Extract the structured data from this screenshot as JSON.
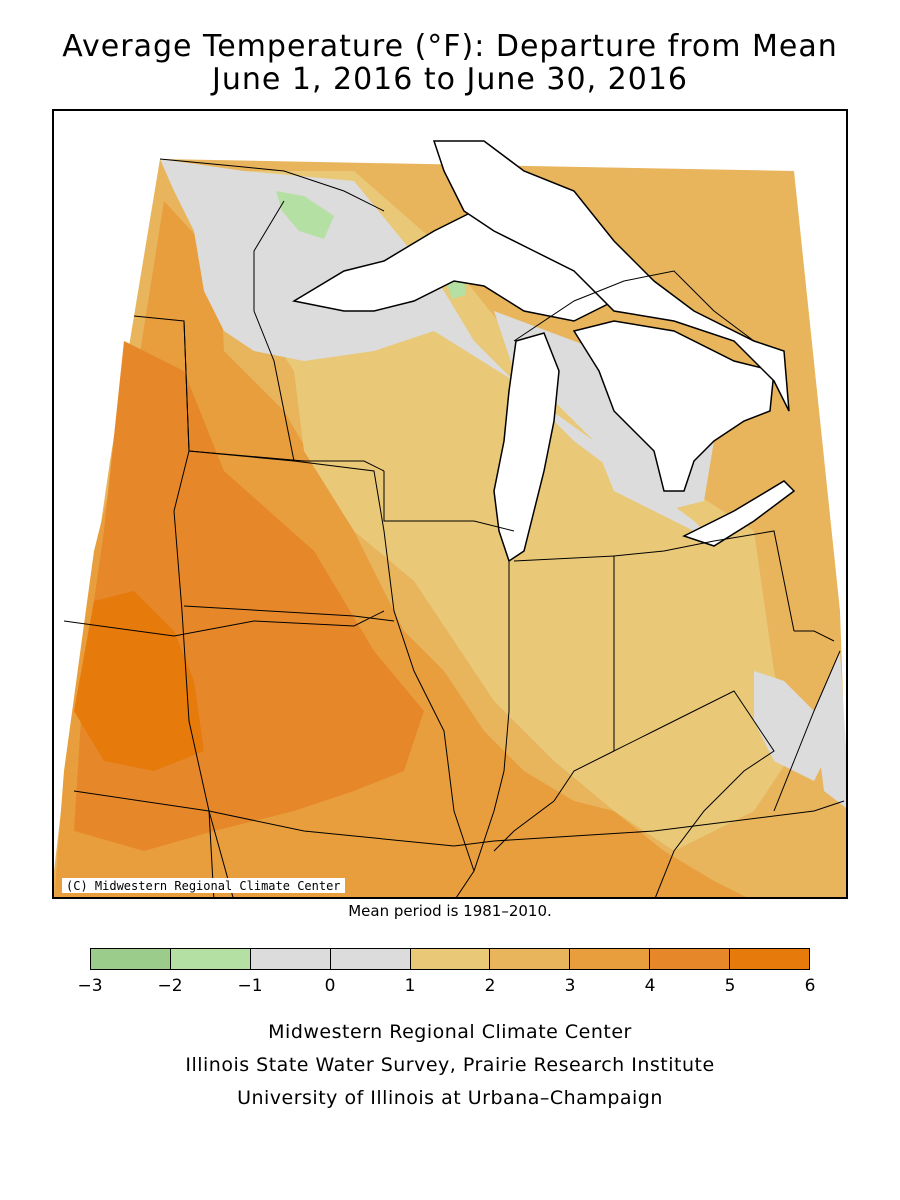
{
  "title_line1": "Average Temperature (°F): Departure from Mean",
  "title_line2": "June 1, 2016 to June 30, 2016",
  "copyright": "(C) Midwestern Regional Climate Center",
  "mean_period": "Mean period is 1981–2010.",
  "legend": {
    "colors": [
      "#9ccc8c",
      "#b4e0a4",
      "#dcdcdc",
      "#dcdcdc",
      "#e9c878",
      "#e8b45c",
      "#e89e3c",
      "#e6882a",
      "#e67a0a"
    ],
    "ticks": [
      "−3",
      "−2",
      "−1",
      "0",
      "1",
      "2",
      "3",
      "4",
      "5",
      "6"
    ]
  },
  "credits": {
    "line1": "Midwestern Regional Climate Center",
    "line2": "Illinois State Water Survey, Prairie Research Institute",
    "line3": "University of Illinois at Urbana–Champaign"
  },
  "map_colors": {
    "neutral": "#dcdcdc",
    "c1": "#e9c878",
    "c2": "#e8b45c",
    "c3": "#e89e3c",
    "c4": "#e6882a",
    "c5": "#e67a0a",
    "cool": "#b4e0a4",
    "water": "#ffffff",
    "border": "#000000"
  }
}
